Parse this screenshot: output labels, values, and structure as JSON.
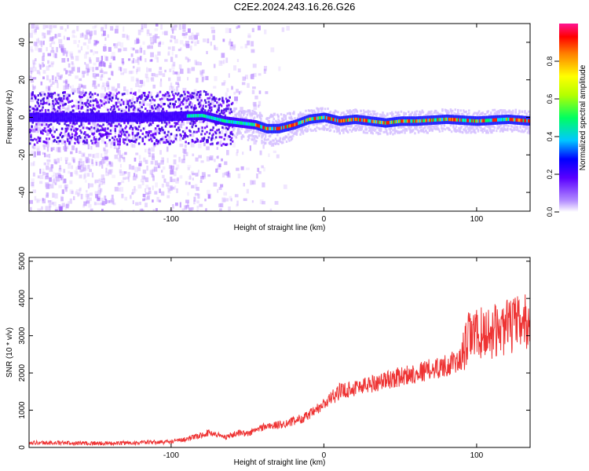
{
  "title": "C2E2.2024.243.16.26.G26",
  "chart_data": [
    {
      "type": "heatmap",
      "xlabel": "Height of straight line (km)",
      "ylabel": "Frequency (Hz)",
      "xlim": [
        -193,
        135
      ],
      "ylim": [
        -50,
        50
      ],
      "x_ticks": [
        -100,
        0,
        100
      ],
      "y_ticks": [
        40,
        20,
        0,
        -20,
        -40
      ],
      "ridge_frequency": {
        "x": [
          -193,
          -120,
          -80,
          -65,
          -55,
          -45,
          -38,
          -30,
          -20,
          -10,
          0,
          10,
          20,
          30,
          40,
          50,
          60,
          80,
          100,
          120,
          135
        ],
        "y": [
          0,
          0,
          1,
          -2,
          -3,
          -4,
          -6,
          -6,
          -4,
          -1,
          0,
          -2,
          -1,
          -2,
          -3,
          -2,
          -2,
          -1,
          -2,
          -1,
          -2
        ]
      },
      "colorbar": {
        "label": "Normalized spectral amplitude",
        "ticks": [
          0.0,
          0.2,
          0.4,
          0.6,
          0.8
        ],
        "range": [
          0,
          1
        ]
      }
    },
    {
      "type": "line",
      "xlabel": "Height of straight line (km)",
      "ylabel": "SNR (10 * v/v)",
      "xlim": [
        -193,
        135
      ],
      "ylim": [
        0,
        5100
      ],
      "x_ticks": [
        -100,
        0,
        100
      ],
      "y_ticks": [
        0,
        1000,
        2000,
        3000,
        4000,
        5000
      ],
      "line_color": "#ee3333",
      "trend": {
        "x": [
          -193,
          -140,
          -100,
          -85,
          -75,
          -65,
          -55,
          -50,
          -40,
          -30,
          -20,
          -10,
          0,
          10,
          20,
          40,
          60,
          80,
          90,
          95,
          110,
          125,
          135
        ],
        "y": [
          130,
          110,
          150,
          270,
          400,
          280,
          400,
          360,
          550,
          600,
          700,
          850,
          1150,
          1500,
          1600,
          1800,
          2000,
          2200,
          2350,
          3000,
          3100,
          3300,
          3400
        ]
      }
    }
  ]
}
